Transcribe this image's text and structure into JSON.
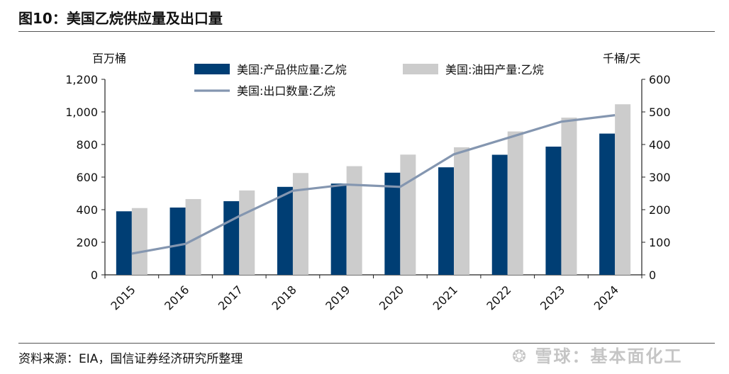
{
  "header": {
    "title": "图10：美国乙烷供应量及出口量"
  },
  "footer": {
    "source": "资料来源：EIA，国信证券经济研究所整理"
  },
  "watermark": {
    "text": "雪球：基本面化工",
    "icon": "snowball-logo-icon"
  },
  "colors": {
    "supply": "#003E74",
    "field": "#CCCCCC",
    "export": "#8496B0"
  },
  "chart_data": {
    "type": "bar",
    "categories": [
      "2015",
      "2016",
      "2017",
      "2018",
      "2019",
      "2020",
      "2021",
      "2022",
      "2023",
      "2024"
    ],
    "left_unit": "百万桶",
    "right_unit": "千桶/天",
    "left_ylim": [
      0,
      1200
    ],
    "left_ticks": [
      "0",
      "200",
      "400",
      "600",
      "800",
      "1,000",
      "1,200"
    ],
    "right_ylim": [
      0,
      600
    ],
    "right_ticks": [
      "0",
      "100",
      "200",
      "300",
      "400",
      "500",
      "600"
    ],
    "grid": false,
    "legend_position": "top",
    "series": [
      {
        "name": "美国:产品供应量:乙烷",
        "type": "bar",
        "axis": "left",
        "color": "#003E74",
        "values": [
          390,
          413,
          452,
          540,
          560,
          627,
          660,
          737,
          787,
          867
        ]
      },
      {
        "name": "美国:油田产量:乙烷",
        "type": "bar",
        "axis": "left",
        "color": "#CCCCCC",
        "values": [
          410,
          465,
          518,
          625,
          667,
          738,
          783,
          880,
          965,
          1047
        ]
      },
      {
        "name": "美国:出口数量:乙烷",
        "type": "line",
        "axis": "right",
        "color": "#8496B0",
        "values": [
          65,
          95,
          180,
          258,
          277,
          270,
          370,
          420,
          470,
          490
        ]
      }
    ]
  }
}
